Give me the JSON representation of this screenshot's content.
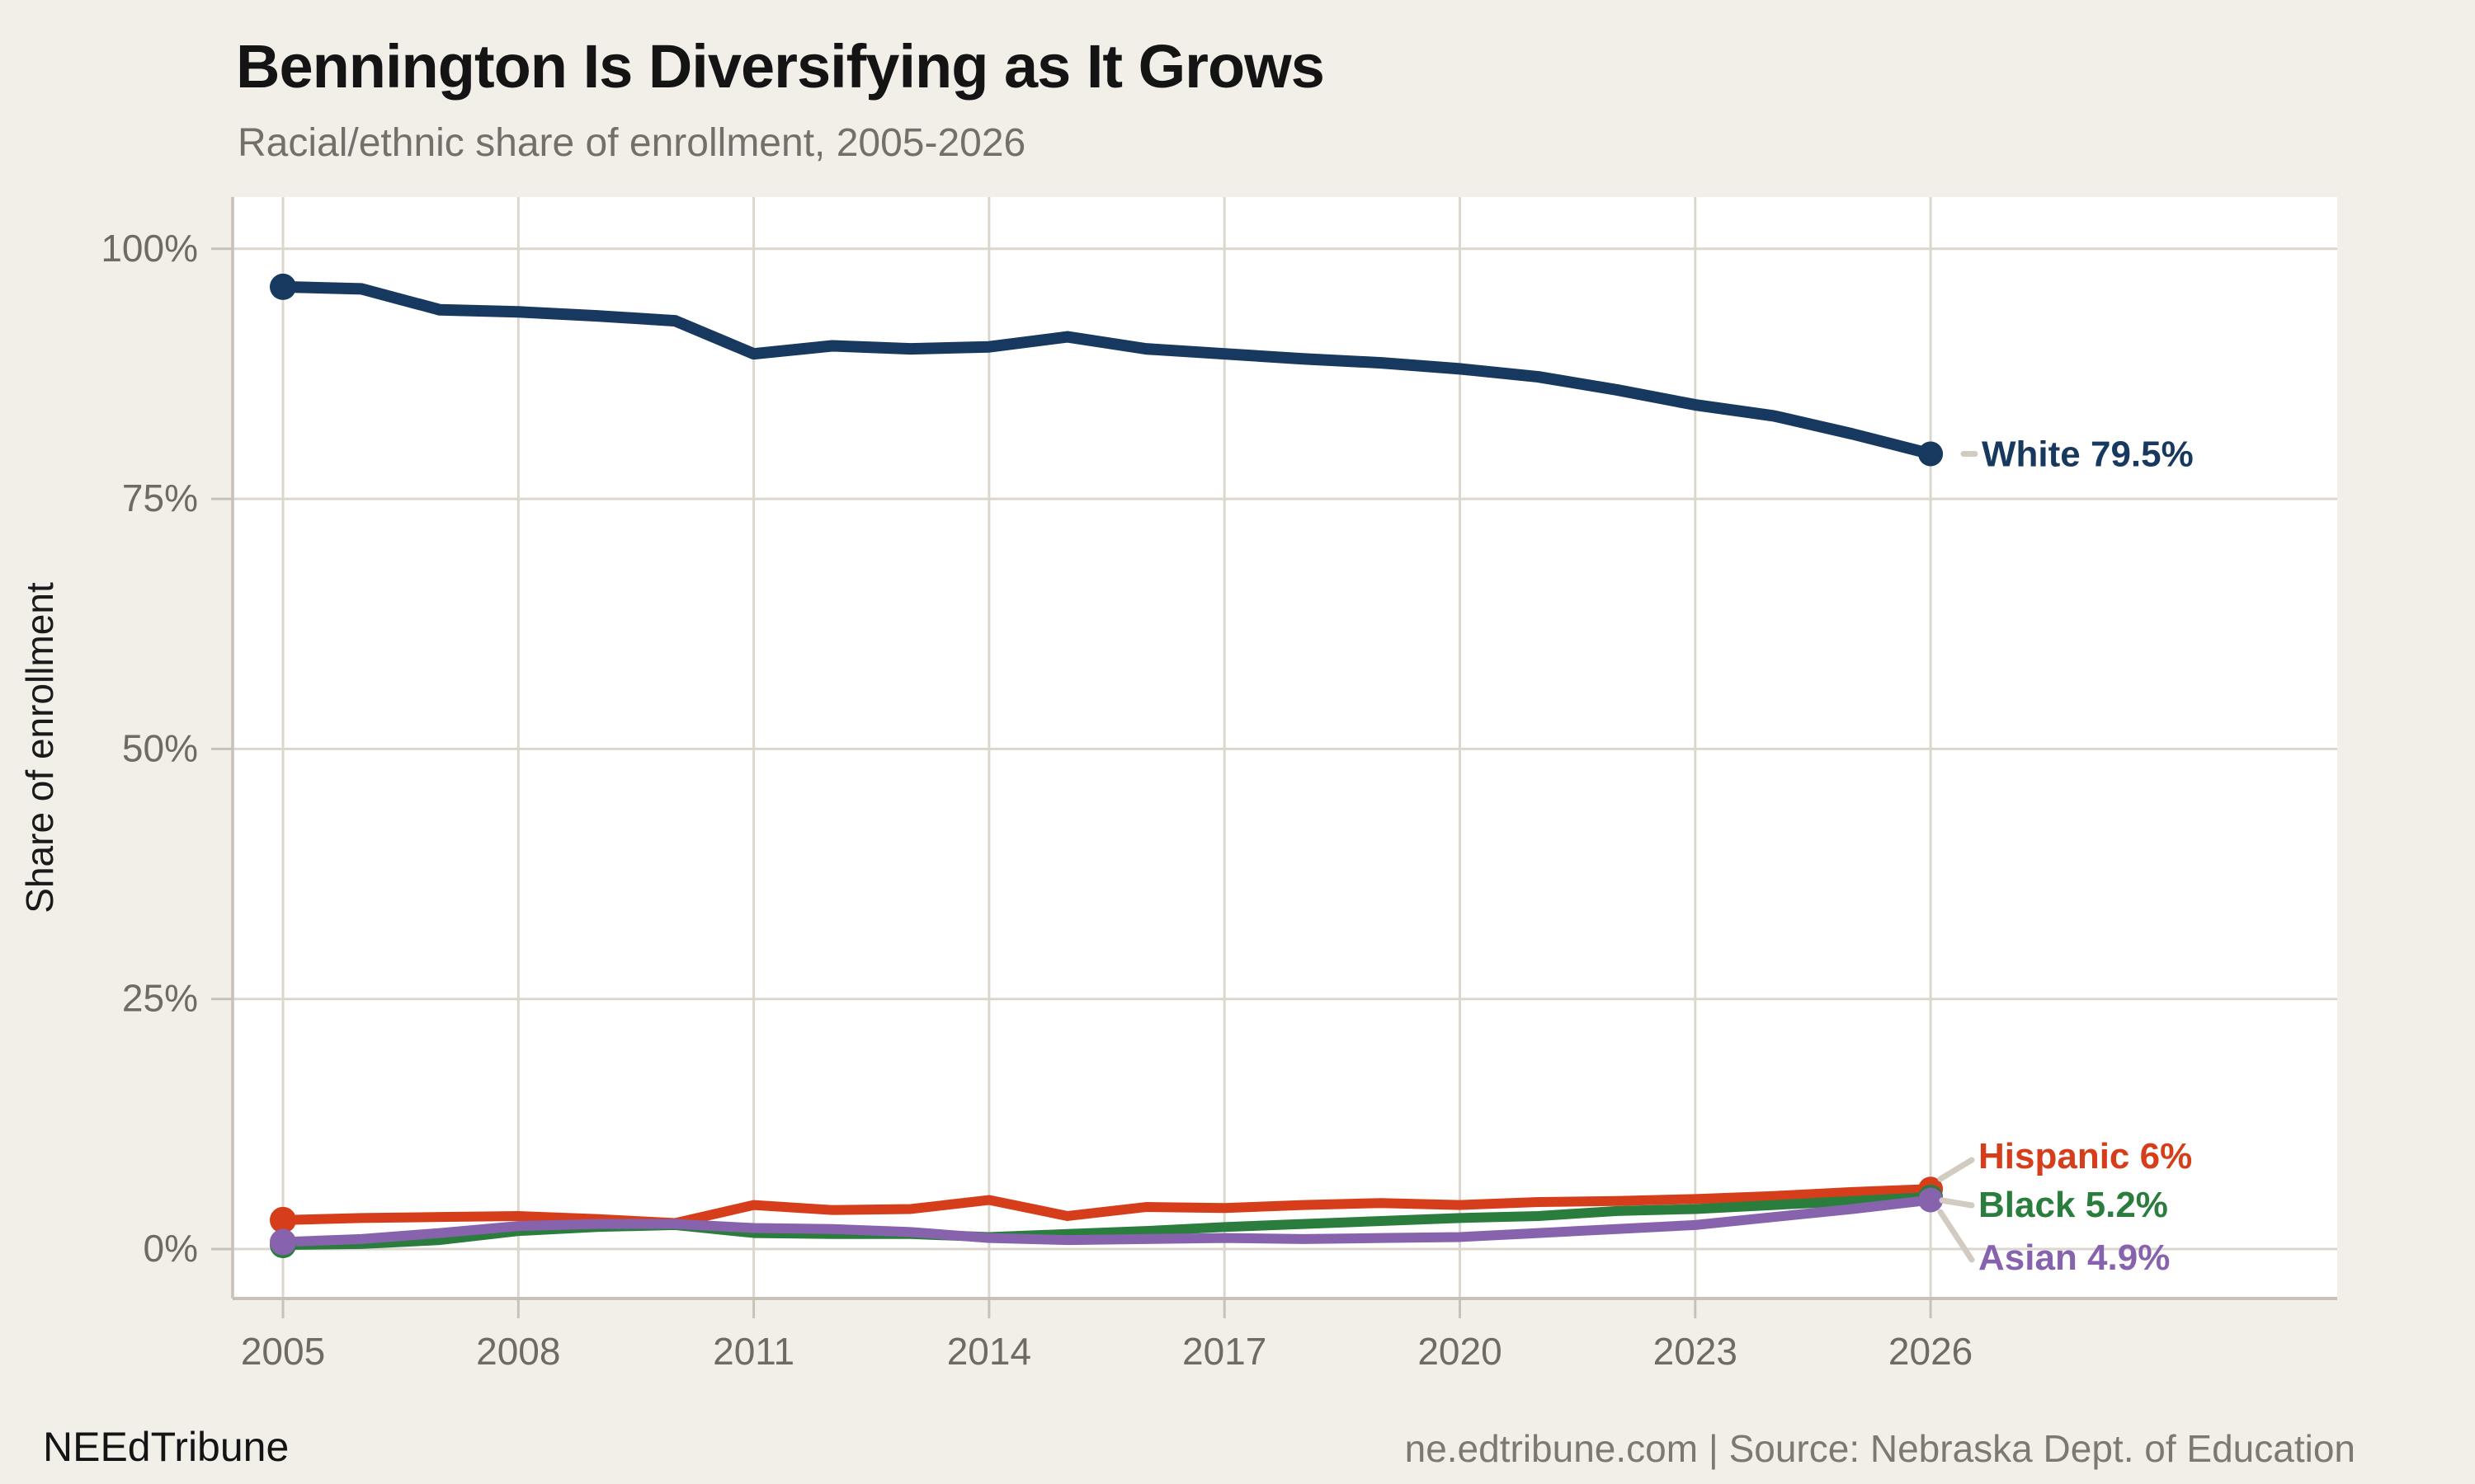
{
  "header": {
    "title": "Bennington Is Diversifying as It Grows",
    "subtitle": "Racial/ethnic share of enrollment, 2005-2026"
  },
  "footer": {
    "brand": "NEEdTribune",
    "source": "ne.edtribune.com | Source: Nebraska Dept. of Education"
  },
  "chart_data": {
    "type": "line",
    "title": "Bennington Is Diversifying as It Grows",
    "subtitle": "Racial/ethnic share of enrollment, 2005-2026",
    "xlabel": "",
    "ylabel": "Share of enrollment",
    "x": [
      2005,
      2006,
      2007,
      2008,
      2009,
      2010,
      2011,
      2012,
      2013,
      2014,
      2015,
      2016,
      2017,
      2018,
      2019,
      2020,
      2021,
      2022,
      2023,
      2024,
      2025,
      2026
    ],
    "x_tick_labels": [
      "2005",
      "2008",
      "2011",
      "2014",
      "2017",
      "2020",
      "2023",
      "2026"
    ],
    "y_ticks": [
      0,
      25,
      50,
      75,
      100
    ],
    "y_tick_labels": [
      "0%",
      "25%",
      "50%",
      "75%",
      "100%"
    ],
    "ylim": [
      -5,
      105
    ],
    "grid": true,
    "legend_position": "end-of-line-labels",
    "series": [
      {
        "name": "White",
        "color": "#17395f",
        "end_label": "White 79.5%",
        "values": [
          96.2,
          96.0,
          93.9,
          93.7,
          93.3,
          92.8,
          89.5,
          90.3,
          90.0,
          90.2,
          91.2,
          90.0,
          89.5,
          89.0,
          88.6,
          88.0,
          87.2,
          85.9,
          84.4,
          83.3,
          81.5,
          79.5
        ]
      },
      {
        "name": "Hispanic",
        "color": "#d63e1b",
        "end_label": "Hispanic 6%",
        "values": [
          2.9,
          3.1,
          3.2,
          3.3,
          3.0,
          2.6,
          4.4,
          3.9,
          4.0,
          4.9,
          3.3,
          4.2,
          4.1,
          4.4,
          4.6,
          4.4,
          4.7,
          4.8,
          5.0,
          5.3,
          5.7,
          6.0
        ]
      },
      {
        "name": "Black",
        "color": "#2b7d3d",
        "end_label": "Black 5.2%",
        "values": [
          0.4,
          0.5,
          0.9,
          1.8,
          2.2,
          2.4,
          1.6,
          1.5,
          1.5,
          1.2,
          1.5,
          1.8,
          2.2,
          2.5,
          2.8,
          3.1,
          3.3,
          3.8,
          4.0,
          4.4,
          4.8,
          5.2
        ]
      },
      {
        "name": "Asian",
        "color": "#8763ae",
        "end_label": "Asian 4.9%",
        "values": [
          0.7,
          1.0,
          1.6,
          2.3,
          2.5,
          2.5,
          2.1,
          2.0,
          1.7,
          1.1,
          0.9,
          1.0,
          1.1,
          1.0,
          1.1,
          1.2,
          1.6,
          2.0,
          2.4,
          3.2,
          4.0,
          4.9
        ]
      }
    ]
  }
}
